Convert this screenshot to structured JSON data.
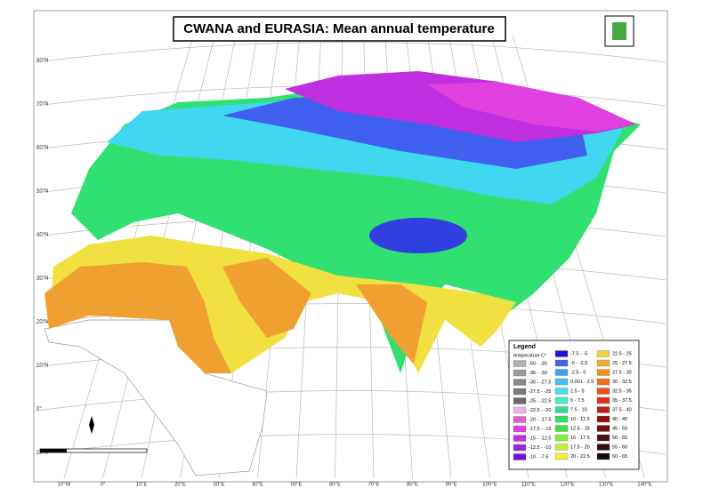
{
  "title": "CWANA and EURASIA: Mean annual temperature",
  "legend": {
    "title": "Legend",
    "subtitle": "temperature C°",
    "items": [
      {
        "label": "-50 - -35",
        "color": "#b0b0b0"
      },
      {
        "label": "-35 - -30",
        "color": "#9a9a9a"
      },
      {
        "label": "-30 - -27.5",
        "color": "#8a8a8a"
      },
      {
        "label": "-27.5 - -25",
        "color": "#7a7a7a"
      },
      {
        "label": "-25 - -22.5",
        "color": "#6a6a6a"
      },
      {
        "label": "-22.5 - -20",
        "color": "#e8b4e8"
      },
      {
        "label": "-20 - -17.5",
        "color": "#e060d0"
      },
      {
        "label": "-17.5 - -15",
        "color": "#e040e0"
      },
      {
        "label": "-15 - -12.5",
        "color": "#c030e0"
      },
      {
        "label": "-12.5 - -10",
        "color": "#a020e0"
      },
      {
        "label": "-10 - -7.5",
        "color": "#7010e0"
      },
      {
        "label": "-7.5 - -5",
        "color": "#2010e0"
      },
      {
        "label": "-5 - -2.5",
        "color": "#4060f0"
      },
      {
        "label": "-2.5 - 0",
        "color": "#40a0f0"
      },
      {
        "label": "0.001 - 2.5",
        "color": "#40c0f0"
      },
      {
        "label": "2.5 - 5",
        "color": "#40e0f0"
      },
      {
        "label": "5 - 7.5",
        "color": "#40f0c0"
      },
      {
        "label": "7.5 - 10",
        "color": "#30e090"
      },
      {
        "label": "10 - 12.5",
        "color": "#30e060"
      },
      {
        "label": "12.5 - 15",
        "color": "#40e040"
      },
      {
        "label": "15 - 17.5",
        "color": "#80f040"
      },
      {
        "label": "17.5 - 20",
        "color": "#c0f040"
      },
      {
        "label": "20 - 22.5",
        "color": "#f0f040"
      },
      {
        "label": "22.5 - 25",
        "color": "#f0d040"
      },
      {
        "label": "25 - 27.5",
        "color": "#f0b030"
      },
      {
        "label": "27.5 - 30",
        "color": "#f09020"
      },
      {
        "label": "30 - 32.5",
        "color": "#f07020"
      },
      {
        "label": "32.5 - 35",
        "color": "#f05020"
      },
      {
        "label": "35 - 37.5",
        "color": "#e03020"
      },
      {
        "label": "37.5 - 40",
        "color": "#c02020"
      },
      {
        "label": "40 - 45",
        "color": "#901010"
      },
      {
        "label": "45 - 50",
        "color": "#701010"
      },
      {
        "label": "50 - 55",
        "color": "#501010"
      },
      {
        "label": "55 - 60",
        "color": "#301010"
      },
      {
        "label": "60 - 65",
        "color": "#101010"
      }
    ]
  },
  "latitude_labels": [
    "80°N",
    "70°N",
    "60°N",
    "50°N",
    "40°N",
    "30°N",
    "20°N",
    "10°N",
    "0°",
    "10°S"
  ],
  "longitude_labels": [
    "10°W",
    "0°",
    "10°E",
    "20°E",
    "30°E",
    "40°E",
    "50°E",
    "60°E",
    "70°E",
    "80°E",
    "90°E",
    "100°E",
    "110°E",
    "120°E",
    "130°E",
    "140°E"
  ]
}
